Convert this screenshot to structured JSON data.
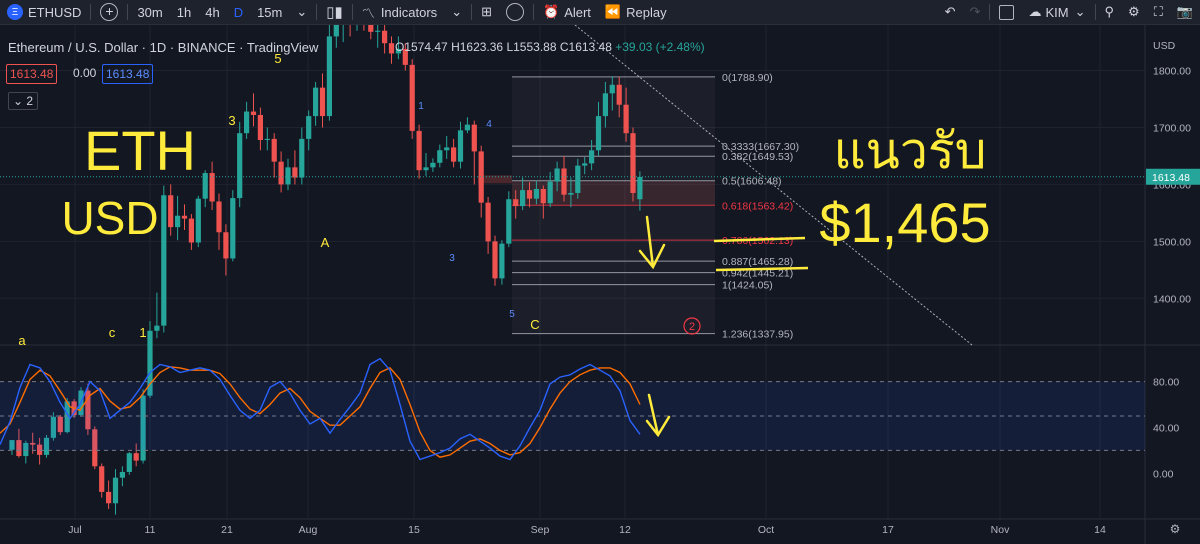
{
  "toolbar": {
    "symbol": "ETHUSD",
    "intervals": [
      "30m",
      "1h",
      "4h",
      "D",
      "15m"
    ],
    "active_interval": "D",
    "indicators_label": "Indicators",
    "alert_label": "Alert",
    "replay_label": "Replay",
    "account_label": "KIM"
  },
  "legend": {
    "title": "Ethereum / U.S. Dollar · 1D · BINANCE · TradingView",
    "ohlc": {
      "open": "O1574.47",
      "high": "H1623.36",
      "low": "L1553.88",
      "close": "C1613.48",
      "change": "+39.03 (+2.48%)"
    },
    "price_left": "1613.48",
    "spread": "0.00",
    "price_right": "1613.48",
    "collapse_count": "2"
  },
  "colors": {
    "background": "#131722",
    "up": "#26a69a",
    "down": "#ef5350",
    "stoch_k": "#2962ff",
    "stoch_d": "#ff6d00",
    "annotation": "#ffeb3b",
    "last_price_tag": "#26a69a"
  },
  "chart_data": {
    "type": "candlestick",
    "timeframe": "1D",
    "price_axis": {
      "ticks": [
        "1800.00",
        "1700.00",
        "1600.00",
        "1500.00",
        "1400.00"
      ],
      "range": [
        1318,
        1880
      ]
    },
    "time_axis": {
      "ticks": [
        "Jul",
        "11",
        "21",
        "Aug",
        "15",
        "Sep",
        "12",
        "Oct",
        "17",
        "Nov",
        "14"
      ]
    },
    "last_price": "1613.48",
    "candles": [
      [
        1134,
        1151,
        1151,
        1125
      ],
      [
        1151,
        1123,
        1171,
        1120
      ],
      [
        1123,
        1146,
        1150,
        1110
      ],
      [
        1146,
        1143,
        1164,
        1127
      ],
      [
        1143,
        1125,
        1155,
        1108
      ],
      [
        1125,
        1155,
        1160,
        1120
      ],
      [
        1155,
        1192,
        1200,
        1150
      ],
      [
        1192,
        1165,
        1195,
        1160
      ],
      [
        1165,
        1219,
        1225,
        1163
      ],
      [
        1219,
        1195,
        1223,
        1190
      ],
      [
        1195,
        1238,
        1244,
        1192
      ],
      [
        1238,
        1170,
        1250,
        1160
      ],
      [
        1170,
        1105,
        1175,
        1100
      ],
      [
        1105,
        1060,
        1110,
        1050
      ],
      [
        1060,
        1040,
        1080,
        1030
      ],
      [
        1040,
        1085,
        1100,
        1020
      ],
      [
        1085,
        1095,
        1105,
        1070
      ],
      [
        1095,
        1128,
        1130,
        1090
      ],
      [
        1128,
        1115,
        1145,
        1105
      ],
      [
        1115,
        1229,
        1240,
        1110
      ],
      [
        1229,
        1343,
        1360,
        1225
      ],
      [
        1343,
        1352,
        1410,
        1330
      ],
      [
        1352,
        1581,
        1598,
        1340
      ],
      [
        1581,
        1525,
        1600,
        1510
      ],
      [
        1525,
        1545,
        1580,
        1502
      ],
      [
        1545,
        1540,
        1565,
        1520
      ],
      [
        1540,
        1498,
        1548,
        1485
      ],
      [
        1498,
        1575,
        1580,
        1490
      ],
      [
        1575,
        1620,
        1625,
        1560
      ],
      [
        1620,
        1570,
        1640,
        1555
      ],
      [
        1570,
        1516,
        1584,
        1485
      ],
      [
        1516,
        1470,
        1530,
        1440
      ],
      [
        1470,
        1576,
        1590,
        1465
      ],
      [
        1576,
        1690,
        1710,
        1560
      ],
      [
        1690,
        1728,
        1745,
        1680
      ],
      [
        1728,
        1722,
        1760,
        1702
      ],
      [
        1722,
        1678,
        1735,
        1660
      ],
      [
        1678,
        1680,
        1700,
        1660
      ],
      [
        1680,
        1640,
        1690,
        1612
      ],
      [
        1640,
        1600,
        1658,
        1586
      ],
      [
        1600,
        1630,
        1645,
        1590
      ],
      [
        1630,
        1612,
        1660,
        1600
      ],
      [
        1612,
        1680,
        1700,
        1600
      ],
      [
        1680,
        1720,
        1730,
        1660
      ],
      [
        1720,
        1770,
        1780,
        1703
      ],
      [
        1770,
        1720,
        1795,
        1700
      ],
      [
        1720,
        1860,
        1880,
        1712
      ],
      [
        1860,
        1880,
        1890,
        1840
      ],
      [
        1880,
        1900,
        1910,
        1850
      ],
      [
        1900,
        1888,
        1920,
        1860
      ],
      [
        1888,
        1900,
        1920,
        1870
      ],
      [
        1900,
        1880,
        1940,
        1870
      ],
      [
        1880,
        1868,
        1915,
        1855
      ],
      [
        1868,
        1870,
        1890,
        1840
      ],
      [
        1870,
        1848,
        1885,
        1830
      ],
      [
        1848,
        1830,
        1860,
        1812
      ],
      [
        1830,
        1838,
        1860,
        1820
      ],
      [
        1838,
        1810,
        1848,
        1800
      ],
      [
        1810,
        1694,
        1820,
        1680
      ],
      [
        1694,
        1625,
        1705,
        1610
      ],
      [
        1625,
        1630,
        1655,
        1615
      ],
      [
        1630,
        1638,
        1646,
        1622
      ],
      [
        1638,
        1660,
        1670,
        1630
      ],
      [
        1660,
        1665,
        1685,
        1645
      ],
      [
        1665,
        1640,
        1680,
        1630
      ],
      [
        1640,
        1695,
        1710,
        1628
      ],
      [
        1695,
        1705,
        1718,
        1690
      ],
      [
        1705,
        1658,
        1712,
        1600
      ],
      [
        1658,
        1568,
        1668,
        1542
      ],
      [
        1568,
        1500,
        1578,
        1478
      ],
      [
        1500,
        1435,
        1510,
        1422
      ],
      [
        1435,
        1496,
        1502,
        1424
      ],
      [
        1496,
        1574,
        1588,
        1490
      ],
      [
        1574,
        1562,
        1590,
        1540
      ],
      [
        1562,
        1590,
        1612,
        1555
      ],
      [
        1590,
        1575,
        1604,
        1560
      ],
      [
        1575,
        1592,
        1607,
        1565
      ],
      [
        1592,
        1567,
        1598,
        1540
      ],
      [
        1567,
        1605,
        1622,
        1560
      ],
      [
        1605,
        1628,
        1640,
        1588
      ],
      [
        1628,
        1582,
        1650,
        1570
      ],
      [
        1582,
        1585,
        1612,
        1560
      ],
      [
        1585,
        1633,
        1645,
        1575
      ],
      [
        1633,
        1637,
        1648,
        1618
      ],
      [
        1637,
        1660,
        1678,
        1625
      ],
      [
        1660,
        1720,
        1745,
        1650
      ],
      [
        1720,
        1760,
        1780,
        1700
      ],
      [
        1760,
        1775,
        1790,
        1730
      ],
      [
        1775,
        1740,
        1789,
        1718
      ],
      [
        1740,
        1690,
        1770,
        1675
      ],
      [
        1690,
        1585,
        1700,
        1570
      ],
      [
        1574,
        1613,
        1623,
        1554
      ]
    ],
    "fibonacci": {
      "levels": [
        {
          "label": "0(1788.90)",
          "value": 1788.9
        },
        {
          "label": "0.3333(1667.30)",
          "value": 1667.3
        },
        {
          "label": "0.382(1649.53)",
          "value": 1649.53
        },
        {
          "label": "0.5(1606.48)",
          "value": 1606.48
        },
        {
          "label": "0.618(1563.42)",
          "value": 1563.42
        },
        {
          "label": "0.786(1502.13)",
          "value": 1502.13
        },
        {
          "label": "0.887(1465.28)",
          "value": 1465.28
        },
        {
          "label": "0.942(1445.21)",
          "value": 1445.21
        },
        {
          "label": "1(1424.05)",
          "value": 1424.05
        },
        {
          "label": "1.236(1337.95)",
          "value": 1337.95
        }
      ]
    },
    "wave_labels": [
      "a",
      "c",
      "1",
      "3",
      "5",
      "A",
      "1",
      "3",
      "4",
      "5",
      "C",
      "2"
    ],
    "stochastic": {
      "ticks": [
        "80.00",
        "40.00",
        "0.00"
      ],
      "range": [
        -12,
        112
      ],
      "band": [
        20,
        80
      ],
      "k": [
        25,
        45,
        75,
        95,
        92,
        80,
        62,
        48,
        60,
        80,
        72,
        48,
        55,
        62,
        74,
        88,
        95,
        93,
        88,
        90,
        92,
        90,
        82,
        68,
        55,
        48,
        55,
        75,
        80,
        70,
        55,
        43,
        48,
        35,
        47,
        58,
        70,
        95,
        100,
        90,
        60,
        28,
        12,
        15,
        18,
        22,
        30,
        34,
        28,
        22,
        15,
        12,
        24,
        40,
        55,
        78,
        84,
        86,
        91,
        95,
        90,
        85,
        72,
        46,
        34
      ],
      "d": [
        35,
        43,
        62,
        82,
        90,
        85,
        72,
        58,
        55,
        68,
        74,
        63,
        56,
        58,
        66,
        78,
        88,
        93,
        92,
        90,
        90,
        90,
        87,
        78,
        66,
        56,
        52,
        60,
        70,
        74,
        66,
        54,
        48,
        42,
        42,
        50,
        58,
        74,
        88,
        92,
        82,
        60,
        36,
        20,
        14,
        16,
        22,
        28,
        30,
        26,
        20,
        16,
        18,
        26,
        40,
        56,
        70,
        80,
        86,
        90,
        92,
        92,
        88,
        78,
        60
      ]
    },
    "annotations": {
      "left_text_1": "ETH",
      "left_text_2": "USD",
      "thai_text": "แนวรับ",
      "price_text": "$1,465"
    }
  }
}
